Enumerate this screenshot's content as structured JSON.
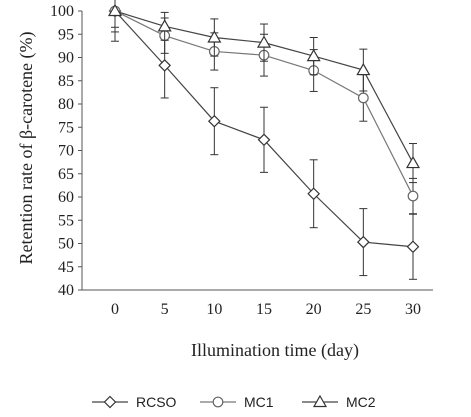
{
  "chart_data": {
    "type": "line",
    "xlabel": "Illumination time (day)",
    "ylabel": "Retention rate of β-carotene (%)",
    "x": [
      0,
      5,
      10,
      15,
      20,
      25,
      30
    ],
    "xlim": [
      0,
      30
    ],
    "ylim": [
      40,
      100
    ],
    "x_ticks": [
      0,
      5,
      10,
      15,
      20,
      25,
      30
    ],
    "y_ticks": [
      40,
      45,
      50,
      55,
      60,
      65,
      70,
      75,
      80,
      85,
      90,
      95,
      100
    ],
    "grid": false,
    "legend_position": "bottom",
    "series": [
      {
        "name": "RCSO",
        "marker": "diamond",
        "values": [
          100,
          88.3,
          76.3,
          72.3,
          60.7,
          50.3,
          49.3
        ],
        "errors": [
          6.5,
          7.0,
          7.2,
          7.0,
          7.3,
          7.2,
          7.0
        ]
      },
      {
        "name": "MC1",
        "marker": "circle",
        "values": [
          100,
          94.7,
          91.3,
          90.5,
          87.2,
          81.3,
          60.2
        ],
        "errors": [
          3.5,
          3.8,
          4.0,
          4.5,
          4.5,
          5.0,
          3.8
        ]
      },
      {
        "name": "MC2",
        "marker": "triangle",
        "values": [
          100,
          96.7,
          94.3,
          93.2,
          90.3,
          87.3,
          67.3
        ],
        "errors": [
          4.5,
          3.0,
          4.0,
          4.0,
          4.0,
          4.5,
          4.2
        ]
      }
    ]
  }
}
